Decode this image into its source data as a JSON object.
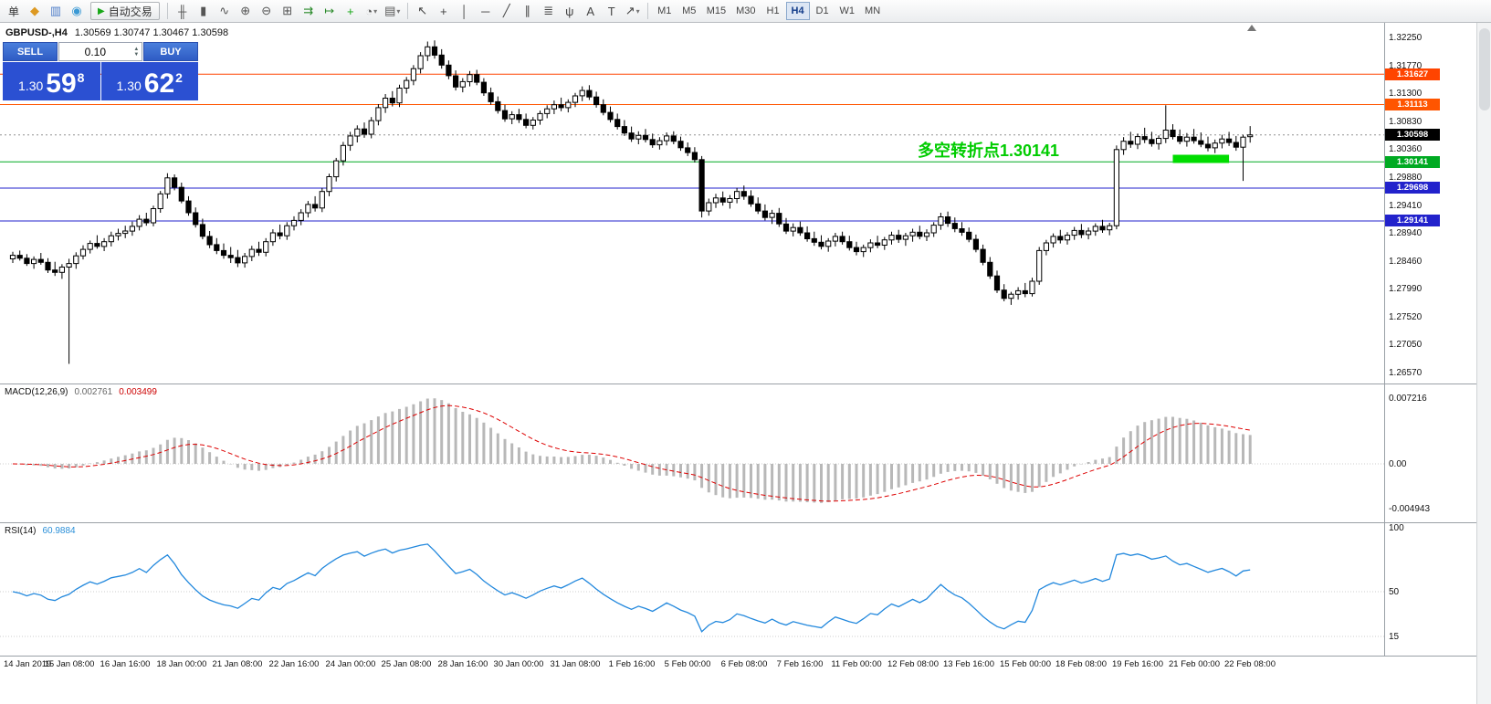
{
  "toolbar": {
    "menu_label": "单",
    "autotrade_label": "自动交易",
    "icons_file": [
      {
        "name": "new-order-icon",
        "glyph": "◆",
        "color": "#dd9922"
      },
      {
        "name": "charts-grid-icon",
        "glyph": "▥",
        "color": "#4d7cc9"
      },
      {
        "name": "market-watch-icon",
        "glyph": "◉",
        "color": "#3b99d4"
      }
    ],
    "icons_chart": [
      {
        "name": "ohlc-bars-icon",
        "glyph": "╫",
        "color": "#555555"
      },
      {
        "name": "candlestick-icon",
        "glyph": "▮",
        "color": "#555555"
      },
      {
        "name": "line-chart-icon",
        "glyph": "∿",
        "color": "#555555"
      },
      {
        "name": "zoom-in-icon",
        "glyph": "⊕",
        "color": "#555555"
      },
      {
        "name": "zoom-out-icon",
        "glyph": "⊖",
        "color": "#555555"
      },
      {
        "name": "tile-windows-icon",
        "glyph": "⊞",
        "color": "#555555"
      },
      {
        "name": "auto-scroll-icon",
        "glyph": "⇉",
        "color": "#2a8a2a"
      },
      {
        "name": "chart-shift-icon",
        "glyph": "↦",
        "color": "#2a8a2a"
      },
      {
        "name": "indicators-icon",
        "glyph": "+",
        "color": "#18a818"
      },
      {
        "name": "periods-icon",
        "glyph": "◔",
        "color": "#555555",
        "dropdown": true
      },
      {
        "name": "templates-icon",
        "glyph": "▤",
        "color": "#555555",
        "dropdown": true
      }
    ],
    "icons_draw": [
      {
        "name": "cursor-icon",
        "glyph": "↖",
        "color": "#444444"
      },
      {
        "name": "crosshair-icon",
        "glyph": "+",
        "color": "#444444"
      },
      {
        "name": "vertical-line-icon",
        "glyph": "│",
        "color": "#444444"
      },
      {
        "name": "horizontal-line-icon",
        "glyph": "─",
        "color": "#444444"
      },
      {
        "name": "trendline-icon",
        "glyph": "╱",
        "color": "#444444"
      },
      {
        "name": "channel-icon",
        "glyph": "∥",
        "color": "#444444"
      },
      {
        "name": "fibonacci-icon",
        "glyph": "≣",
        "color": "#444444"
      },
      {
        "name": "andrews-pitchfork-icon",
        "glyph": "ψ",
        "color": "#444444"
      },
      {
        "name": "text-icon",
        "glyph": "A",
        "color": "#444444"
      },
      {
        "name": "text-label-icon",
        "glyph": "T",
        "color": "#444444"
      },
      {
        "name": "arrows-icon",
        "glyph": "↗",
        "color": "#444444",
        "dropdown": true
      }
    ],
    "timeframes": [
      "M1",
      "M5",
      "M15",
      "M30",
      "H1",
      "H4",
      "D1",
      "W1",
      "MN"
    ],
    "active_timeframe": "H4"
  },
  "quote_panel": {
    "sell_label": "SELL",
    "buy_label": "BUY",
    "lot": "0.10",
    "sell_price_prefix": "1.30",
    "sell_price_main": "59",
    "sell_price_sup": "8",
    "buy_price_prefix": "1.30",
    "buy_price_main": "62",
    "buy_price_sup": "2"
  },
  "chart": {
    "symbol_label": "GBPUSD-,H4",
    "ohlc_label": "1.30569 1.30747 1.30467 1.30598",
    "annotation": {
      "text": "多空转折点1.30141",
      "color": "#00cc00"
    },
    "price_min": 1.2645,
    "price_max": 1.3245,
    "price_axis": [
      "1.32250",
      "1.31770",
      "1.31300",
      "1.30830",
      "1.30360",
      "1.29880",
      "1.29410",
      "1.28940",
      "1.28460",
      "1.27990",
      "1.27520",
      "1.27050",
      "1.26570"
    ],
    "hlines": [
      {
        "price": 1.31627,
        "label": "1.31627",
        "color": "#ff4400"
      },
      {
        "price": 1.31113,
        "label": "1.31113",
        "color": "#ff5500"
      },
      {
        "price": 1.30141,
        "label": "1.30141",
        "color": "#00aa22"
      },
      {
        "price": 1.29698,
        "label": "1.29698",
        "color": "#2222cc"
      },
      {
        "price": 1.29141,
        "label": "1.29141",
        "color": "#2222cc"
      }
    ],
    "current_price": {
      "price": 1.30598,
      "label": "1.30598",
      "color": "#000000"
    },
    "highlight_bar": {
      "from_bar": 165,
      "to_bar": 173,
      "price": 1.302,
      "color": "#00dd00"
    },
    "time_axis": [
      "14 Jan 2019",
      "15 Jan 08:00",
      "16 Jan 16:00",
      "18 Jan 00:00",
      "21 Jan 08:00",
      "22 Jan 16:00",
      "24 Jan 00:00",
      "25 Jan 08:00",
      "28 Jan 16:00",
      "30 Jan 00:00",
      "31 Jan 08:00",
      "1 Feb 16:00",
      "5 Feb 00:00",
      "6 Feb 08:00",
      "7 Feb 16:00",
      "11 Feb 00:00",
      "12 Feb 08:00",
      "13 Feb 16:00",
      "15 Feb 00:00",
      "18 Feb 08:00",
      "19 Feb 16:00",
      "21 Feb 00:00",
      "22 Feb 08:00"
    ],
    "candles": [
      [
        1.285,
        1.2862,
        1.2843,
        1.2856
      ],
      [
        1.2856,
        1.2864,
        1.2847,
        1.2851
      ],
      [
        1.2851,
        1.2858,
        1.2838,
        1.2842
      ],
      [
        1.2842,
        1.2854,
        1.2833,
        1.2849
      ],
      [
        1.2849,
        1.286,
        1.284,
        1.2844
      ],
      [
        1.2844,
        1.2851,
        1.2826,
        1.2831
      ],
      [
        1.2831,
        1.2845,
        1.2821,
        1.2827
      ],
      [
        1.2827,
        1.2841,
        1.2816,
        1.2836
      ],
      [
        1.2836,
        1.285,
        1.2672,
        1.2842
      ],
      [
        1.2842,
        1.2861,
        1.2833,
        1.2855
      ],
      [
        1.2855,
        1.2873,
        1.2849,
        1.2866
      ],
      [
        1.2866,
        1.2881,
        1.2859,
        1.2876
      ],
      [
        1.2876,
        1.289,
        1.2867,
        1.2871
      ],
      [
        1.2871,
        1.2885,
        1.2863,
        1.2879
      ],
      [
        1.2879,
        1.2896,
        1.2871,
        1.2889
      ],
      [
        1.2889,
        1.2901,
        1.2881,
        1.2893
      ],
      [
        1.2893,
        1.2906,
        1.2885,
        1.2897
      ],
      [
        1.2897,
        1.2913,
        1.2889,
        1.2905
      ],
      [
        1.2905,
        1.2924,
        1.2898,
        1.2917
      ],
      [
        1.2917,
        1.2928,
        1.2906,
        1.2911
      ],
      [
        1.2911,
        1.294,
        1.2905,
        1.2935
      ],
      [
        1.2935,
        1.2965,
        1.2928,
        1.296
      ],
      [
        1.296,
        1.2995,
        1.2952,
        1.2987
      ],
      [
        1.2987,
        1.2993,
        1.2966,
        1.2971
      ],
      [
        1.2971,
        1.2979,
        1.2944,
        1.2948
      ],
      [
        1.2948,
        1.2956,
        1.2923,
        1.2928
      ],
      [
        1.2928,
        1.2937,
        1.2903,
        1.2908
      ],
      [
        1.2908,
        1.2918,
        1.2883,
        1.2888
      ],
      [
        1.2888,
        1.2897,
        1.2868,
        1.2874
      ],
      [
        1.2874,
        1.2885,
        1.2858,
        1.2864
      ],
      [
        1.2864,
        1.2876,
        1.285,
        1.2856
      ],
      [
        1.2856,
        1.287,
        1.2843,
        1.2852
      ],
      [
        1.2852,
        1.2865,
        1.2836,
        1.2843
      ],
      [
        1.2843,
        1.286,
        1.2835,
        1.2854
      ],
      [
        1.2854,
        1.2872,
        1.2846,
        1.2866
      ],
      [
        1.2866,
        1.2879,
        1.2855,
        1.2861
      ],
      [
        1.2861,
        1.2885,
        1.2854,
        1.2879
      ],
      [
        1.2879,
        1.29,
        1.2872,
        1.2894
      ],
      [
        1.2894,
        1.2908,
        1.2883,
        1.2889
      ],
      [
        1.2889,
        1.2912,
        1.2882,
        1.2906
      ],
      [
        1.2906,
        1.2922,
        1.2898,
        1.2915
      ],
      [
        1.2915,
        1.2934,
        1.2907,
        1.2928
      ],
      [
        1.2928,
        1.2948,
        1.292,
        1.2942
      ],
      [
        1.2942,
        1.2956,
        1.293,
        1.2936
      ],
      [
        1.2936,
        1.297,
        1.2929,
        1.2964
      ],
      [
        1.2964,
        1.2994,
        1.2956,
        1.2989
      ],
      [
        1.2989,
        1.3021,
        1.2981,
        1.3016
      ],
      [
        1.3016,
        1.3048,
        1.3008,
        1.3042
      ],
      [
        1.3042,
        1.3065,
        1.3033,
        1.3058
      ],
      [
        1.3058,
        1.3076,
        1.3047,
        1.307
      ],
      [
        1.307,
        1.3081,
        1.3055,
        1.3061
      ],
      [
        1.3061,
        1.309,
        1.3054,
        1.3084
      ],
      [
        1.3084,
        1.3112,
        1.3076,
        1.3106
      ],
      [
        1.3106,
        1.3129,
        1.3097,
        1.3122
      ],
      [
        1.3122,
        1.3134,
        1.3108,
        1.3114
      ],
      [
        1.3114,
        1.3145,
        1.3107,
        1.3139
      ],
      [
        1.3139,
        1.3158,
        1.313,
        1.3152
      ],
      [
        1.3152,
        1.3178,
        1.3144,
        1.3172
      ],
      [
        1.3172,
        1.32,
        1.3164,
        1.3194
      ],
      [
        1.3194,
        1.3218,
        1.3185,
        1.3209
      ],
      [
        1.3209,
        1.322,
        1.3189,
        1.3195
      ],
      [
        1.3195,
        1.3205,
        1.3172,
        1.3178
      ],
      [
        1.3178,
        1.3186,
        1.3154,
        1.316
      ],
      [
        1.316,
        1.3169,
        1.3135,
        1.3141
      ],
      [
        1.3141,
        1.3156,
        1.3132,
        1.315
      ],
      [
        1.315,
        1.3168,
        1.3142,
        1.3162
      ],
      [
        1.3162,
        1.317,
        1.3144,
        1.3149
      ],
      [
        1.3149,
        1.3156,
        1.3126,
        1.3131
      ],
      [
        1.3131,
        1.314,
        1.3111,
        1.3116
      ],
      [
        1.3116,
        1.3125,
        1.3096,
        1.3101
      ],
      [
        1.3101,
        1.3111,
        1.3082,
        1.3087
      ],
      [
        1.3087,
        1.31,
        1.3078,
        1.3094
      ],
      [
        1.3094,
        1.3104,
        1.308,
        1.3086
      ],
      [
        1.3086,
        1.3096,
        1.3071,
        1.3076
      ],
      [
        1.3076,
        1.309,
        1.3069,
        1.3085
      ],
      [
        1.3085,
        1.3101,
        1.3077,
        1.3096
      ],
      [
        1.3096,
        1.311,
        1.3088,
        1.3104
      ],
      [
        1.3104,
        1.3118,
        1.3095,
        1.3111
      ],
      [
        1.3111,
        1.3123,
        1.31,
        1.3106
      ],
      [
        1.3106,
        1.312,
        1.3098,
        1.3115
      ],
      [
        1.3115,
        1.3131,
        1.3107,
        1.3126
      ],
      [
        1.3126,
        1.3142,
        1.3117,
        1.3135
      ],
      [
        1.3135,
        1.3144,
        1.3119,
        1.3124
      ],
      [
        1.3124,
        1.3133,
        1.3106,
        1.3111
      ],
      [
        1.3111,
        1.312,
        1.3093,
        1.3098
      ],
      [
        1.3098,
        1.3108,
        1.3081,
        1.3086
      ],
      [
        1.3086,
        1.3096,
        1.3069,
        1.3074
      ],
      [
        1.3074,
        1.3085,
        1.3058,
        1.3063
      ],
      [
        1.3063,
        1.3074,
        1.3048,
        1.3053
      ],
      [
        1.3053,
        1.3066,
        1.3044,
        1.3059
      ],
      [
        1.3059,
        1.307,
        1.3047,
        1.3052
      ],
      [
        1.3052,
        1.3062,
        1.3038,
        1.3043
      ],
      [
        1.3043,
        1.3056,
        1.3035,
        1.305
      ],
      [
        1.305,
        1.3064,
        1.3042,
        1.3058
      ],
      [
        1.3058,
        1.3066,
        1.3044,
        1.3049
      ],
      [
        1.3049,
        1.3057,
        1.3033,
        1.3038
      ],
      [
        1.3038,
        1.3047,
        1.3024,
        1.303
      ],
      [
        1.303,
        1.3039,
        1.3013,
        1.3018
      ],
      [
        1.3018,
        1.3024,
        1.292,
        1.2931
      ],
      [
        1.2931,
        1.2952,
        1.2923,
        1.2945
      ],
      [
        1.2945,
        1.296,
        1.2936,
        1.2953
      ],
      [
        1.2953,
        1.2964,
        1.294,
        1.2946
      ],
      [
        1.2946,
        1.2958,
        1.2935,
        1.2952
      ],
      [
        1.2952,
        1.297,
        1.2944,
        1.2964
      ],
      [
        1.2964,
        1.2974,
        1.295,
        1.2956
      ],
      [
        1.2956,
        1.2966,
        1.2938,
        1.2943
      ],
      [
        1.2943,
        1.2954,
        1.2926,
        1.2931
      ],
      [
        1.2931,
        1.2942,
        1.2915,
        1.292
      ],
      [
        1.292,
        1.2933,
        1.2909,
        1.2927
      ],
      [
        1.2927,
        1.2936,
        1.2904,
        1.2909
      ],
      [
        1.2909,
        1.2919,
        1.2892,
        1.2897
      ],
      [
        1.2897,
        1.291,
        1.2888,
        1.2903
      ],
      [
        1.2903,
        1.2913,
        1.2889,
        1.2894
      ],
      [
        1.2894,
        1.2905,
        1.2879,
        1.2884
      ],
      [
        1.2884,
        1.2896,
        1.2872,
        1.2878
      ],
      [
        1.2878,
        1.289,
        1.2866,
        1.2871
      ],
      [
        1.2871,
        1.2885,
        1.2862,
        1.288
      ],
      [
        1.288,
        1.2894,
        1.2871,
        1.2888
      ],
      [
        1.2888,
        1.2896,
        1.2874,
        1.2879
      ],
      [
        1.2879,
        1.2889,
        1.2864,
        1.2869
      ],
      [
        1.2869,
        1.2879,
        1.2856,
        1.2862
      ],
      [
        1.2862,
        1.2874,
        1.2853,
        1.2869
      ],
      [
        1.2869,
        1.2883,
        1.2861,
        1.2877
      ],
      [
        1.2877,
        1.2889,
        1.2868,
        1.2873
      ],
      [
        1.2873,
        1.2887,
        1.2865,
        1.2882
      ],
      [
        1.2882,
        1.2896,
        1.2874,
        1.289
      ],
      [
        1.289,
        1.2899,
        1.2877,
        1.2883
      ],
      [
        1.2883,
        1.2894,
        1.2872,
        1.2889
      ],
      [
        1.2889,
        1.2901,
        1.2879,
        1.2895
      ],
      [
        1.2895,
        1.2906,
        1.2883,
        1.2888
      ],
      [
        1.2888,
        1.29,
        1.288,
        1.2894
      ],
      [
        1.2894,
        1.2912,
        1.2887,
        1.2907
      ],
      [
        1.2907,
        1.2928,
        1.2899,
        1.2921
      ],
      [
        1.2921,
        1.293,
        1.2904,
        1.291
      ],
      [
        1.291,
        1.292,
        1.2895,
        1.2901
      ],
      [
        1.2901,
        1.2912,
        1.2889,
        1.2895
      ],
      [
        1.2895,
        1.2903,
        1.2878,
        1.2883
      ],
      [
        1.2883,
        1.2891,
        1.2861,
        1.2866
      ],
      [
        1.2866,
        1.2874,
        1.2839,
        1.2844
      ],
      [
        1.2844,
        1.2853,
        1.2816,
        1.2821
      ],
      [
        1.2821,
        1.283,
        1.2792,
        1.2797
      ],
      [
        1.2797,
        1.2807,
        1.2778,
        1.2783
      ],
      [
        1.2783,
        1.2794,
        1.2772,
        1.279
      ],
      [
        1.279,
        1.2802,
        1.2781,
        1.2796
      ],
      [
        1.2796,
        1.2809,
        1.2785,
        1.2791
      ],
      [
        1.2791,
        1.2818,
        1.2786,
        1.2812
      ],
      [
        1.2812,
        1.287,
        1.2806,
        1.2864
      ],
      [
        1.2864,
        1.2882,
        1.2856,
        1.2877
      ],
      [
        1.2877,
        1.2893,
        1.2869,
        1.2888
      ],
      [
        1.2888,
        1.2899,
        1.2876,
        1.2882
      ],
      [
        1.2882,
        1.2895,
        1.2874,
        1.289
      ],
      [
        1.289,
        1.2904,
        1.2882,
        1.2898
      ],
      [
        1.2898,
        1.2909,
        1.2885,
        1.2891
      ],
      [
        1.2891,
        1.2903,
        1.2883,
        1.2897
      ],
      [
        1.2897,
        1.291,
        1.2889,
        1.2905
      ],
      [
        1.2905,
        1.2916,
        1.2894,
        1.2899
      ],
      [
        1.2899,
        1.2911,
        1.289,
        1.2906
      ],
      [
        1.2906,
        1.3042,
        1.29,
        1.3035
      ],
      [
        1.3035,
        1.3056,
        1.3026,
        1.3049
      ],
      [
        1.3049,
        1.3065,
        1.3038,
        1.3044
      ],
      [
        1.3044,
        1.3062,
        1.3036,
        1.3057
      ],
      [
        1.3057,
        1.3072,
        1.3046,
        1.3052
      ],
      [
        1.3052,
        1.3065,
        1.304,
        1.3045
      ],
      [
        1.3045,
        1.3059,
        1.3035,
        1.3054
      ],
      [
        1.3054,
        1.311,
        1.3046,
        1.3068
      ],
      [
        1.3068,
        1.3078,
        1.3052,
        1.3057
      ],
      [
        1.3057,
        1.3069,
        1.3044,
        1.3049
      ],
      [
        1.3049,
        1.3063,
        1.304,
        1.3056
      ],
      [
        1.3056,
        1.307,
        1.3045,
        1.305
      ],
      [
        1.305,
        1.3064,
        1.3039,
        1.3044
      ],
      [
        1.3044,
        1.3057,
        1.3032,
        1.3038
      ],
      [
        1.3038,
        1.3052,
        1.3029,
        1.3046
      ],
      [
        1.3046,
        1.306,
        1.3037,
        1.3053
      ],
      [
        1.3053,
        1.3065,
        1.3041,
        1.3047
      ],
      [
        1.3047,
        1.3058,
        1.3033,
        1.3039
      ],
      [
        1.3039,
        1.306,
        1.2982,
        1.3056
      ],
      [
        1.30569,
        1.30747,
        1.30467,
        1.30598
      ]
    ]
  },
  "macd": {
    "label": "MACD(12,26,9)",
    "value1": "0.002761",
    "value2": "0.003499",
    "axis": [
      "0.007216",
      "0.00",
      "-0.004943"
    ],
    "max": 0.0077,
    "min": -0.0061
  },
  "rsi": {
    "label": "RSI(14)",
    "value": "60.9884",
    "axis": [
      "100",
      "50",
      "15"
    ]
  }
}
